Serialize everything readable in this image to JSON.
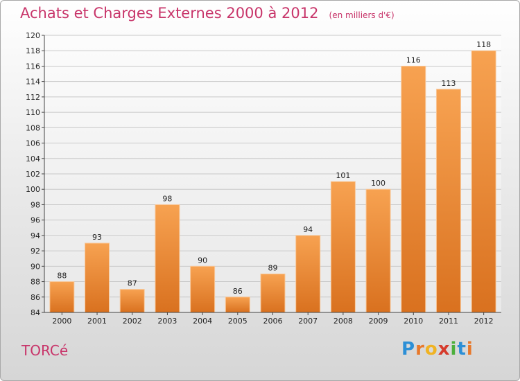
{
  "title": "Achats et Charges Externes 2000 à 2012",
  "unit_note": "(en milliers d'€)",
  "place_name": "TORCé",
  "logo": {
    "letters": [
      {
        "ch": "P",
        "color": "#2c8fd6"
      },
      {
        "ch": "r",
        "color": "#e8782a"
      },
      {
        "ch": "o",
        "color": "#f0b323"
      },
      {
        "ch": "x",
        "color": "#d63b2c"
      },
      {
        "ch": "i",
        "color": "#4caf3c"
      },
      {
        "ch": "t",
        "color": "#2c8fd6"
      },
      {
        "ch": "i",
        "color": "#e8782a"
      }
    ]
  },
  "colors": {
    "bar_light": "#f7a251",
    "bar_dark": "#d9711f",
    "title": "#c8356a",
    "grid": "#c8c8c8"
  },
  "chart_data": {
    "type": "bar",
    "categories": [
      "2000",
      "2001",
      "2002",
      "2003",
      "2004",
      "2005",
      "2006",
      "2007",
      "2008",
      "2009",
      "2010",
      "2011",
      "2012"
    ],
    "values": [
      88,
      93,
      87,
      98,
      90,
      86,
      89,
      94,
      101,
      100,
      116,
      113,
      118
    ],
    "ylim": [
      84,
      120
    ],
    "ytick_step": 2,
    "grid": true,
    "data_labels": true
  }
}
